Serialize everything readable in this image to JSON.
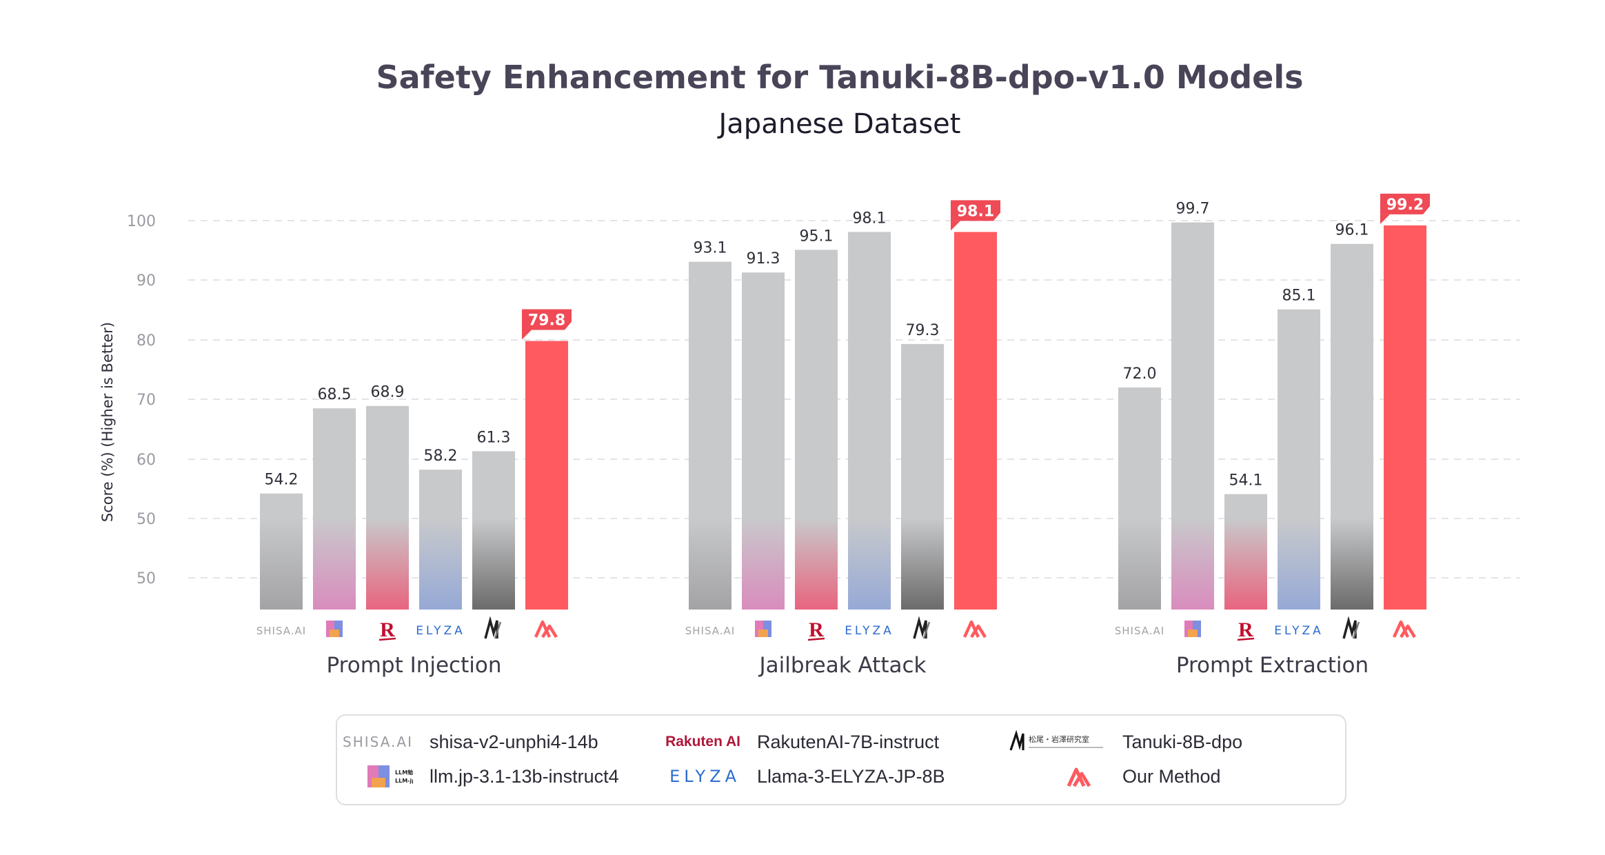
{
  "chart_data": {
    "type": "bar",
    "title": "Safety Enhancement for Tanuki-8B-dpo-v1.0 Models",
    "subtitle": "Japanese Dataset",
    "ylabel": "Score (%) (Higher is Better)",
    "yticks": [
      "100",
      "90",
      "80",
      "70",
      "60",
      "50",
      "50"
    ],
    "categories": [
      "Prompt Injection",
      "Jailbreak Attack",
      "Prompt Extraction"
    ],
    "series": [
      {
        "name": "shisa-v2-unphi4-14b",
        "logo": "SHISA.AI",
        "values": [
          54.2,
          93.1,
          72.0
        ],
        "labels": [
          "54.2",
          "93.1",
          "72.0"
        ]
      },
      {
        "name": "llm.jp-3.1-13b-instruct4",
        "logo": "LLM-jp",
        "values": [
          68.5,
          91.3,
          99.7
        ],
        "labels": [
          "68.5",
          "91.3",
          "99.7"
        ]
      },
      {
        "name": "RakutenAI-7B-instruct",
        "logo": "Rakuten AI",
        "values": [
          68.9,
          95.1,
          54.1
        ],
        "labels": [
          "68.9",
          "95.1",
          "54.1"
        ]
      },
      {
        "name": "Llama-3-ELYZA-JP-8B",
        "logo": "ELYZA",
        "values": [
          58.2,
          98.1,
          85.1
        ],
        "labels": [
          "58.2",
          "98.1",
          "85.1"
        ]
      },
      {
        "name": "Tanuki-8B-dpo",
        "logo": "Matsuo-Iwasawa Lab",
        "values": [
          61.3,
          79.3,
          96.1
        ],
        "labels": [
          "61.3",
          "79.3",
          "96.1"
        ]
      },
      {
        "name": "Our Method",
        "logo": "our-method",
        "values": [
          79.8,
          98.1,
          99.2
        ],
        "labels": [
          "79.8",
          "98.1",
          "99.2"
        ],
        "highlight": true
      }
    ],
    "grid": "horizontal-dashed",
    "legend_position": "bottom"
  },
  "logos": {
    "shisa": "SHISA.AI",
    "rakuten": "Rakuten AI",
    "elyza": "ELYZA",
    "llmjp_line1": "LLM勉強会",
    "llmjp_line2": "LLM-jp",
    "matsuo": "松尾・岩澤研究室"
  },
  "legend": {
    "items": [
      {
        "label": "shisa-v2-unphi4-14b"
      },
      {
        "label": "RakutenAI-7B-instruct"
      },
      {
        "label": "Tanuki-8B-dpo"
      },
      {
        "label": "llm.jp-3.1-13b-instruct4"
      },
      {
        "label": "Llama-3-ELYZA-JP-8B"
      },
      {
        "label": "Our Method"
      }
    ]
  },
  "colors": {
    "gray_top": "#c8c9cb",
    "shisa_bottom": "#a3a3a5",
    "llmjp_bottom": "#d98cbd",
    "rakuten_bottom": "#e8657f",
    "elyza_bottom": "#96a9d6",
    "tanuki_bottom": "#6b6b6b",
    "our_method": "#ff5a5f",
    "highlight_label": "#ef4a55"
  }
}
